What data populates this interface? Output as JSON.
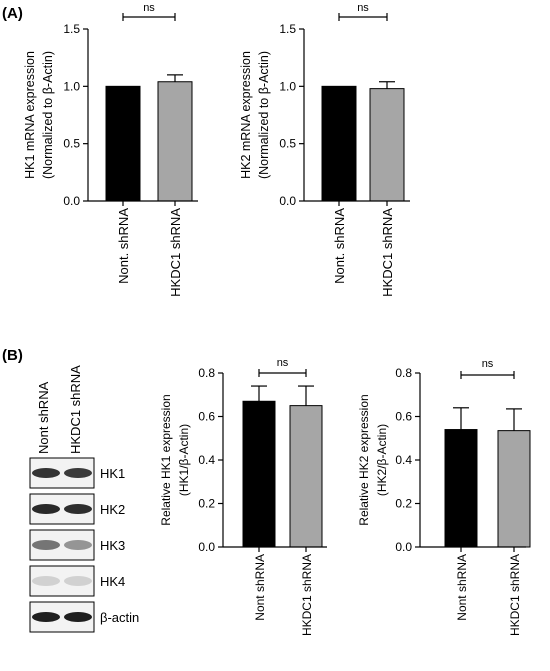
{
  "panels": {
    "a_label": "(A)",
    "b_label": "(B)"
  },
  "colors": {
    "control": "#000000",
    "knockdown": "#a6a6a6"
  },
  "chart_data": [
    {
      "type": "bar",
      "panel": "A",
      "categories": [
        "Nont. shRNA",
        "HKDC1 shRNA"
      ],
      "values": [
        1.0,
        1.04
      ],
      "errors": [
        0.0,
        0.06
      ],
      "ylabel_line1": "HK1 mRNA expression",
      "ylabel_line2": "(Normalized to β-Actin)",
      "ylim": [
        0,
        1.5
      ],
      "yticks": [
        "0.0",
        "0.5",
        "1.0",
        "1.5"
      ],
      "significance": "ns"
    },
    {
      "type": "bar",
      "panel": "A",
      "categories": [
        "Nont. shRNA",
        "HKDC1 shRNA"
      ],
      "values": [
        1.0,
        0.98
      ],
      "errors": [
        0.0,
        0.06
      ],
      "ylabel_line1": "HK2 mRNA expression",
      "ylabel_line2": "(Normalized to β-Actin)",
      "ylim": [
        0,
        1.5
      ],
      "yticks": [
        "0.0",
        "0.5",
        "1.0",
        "1.5"
      ],
      "significance": "ns"
    },
    {
      "type": "bar",
      "panel": "B",
      "categories": [
        "Nont shRNA",
        "HKDC1 shRNA"
      ],
      "values": [
        0.67,
        0.65
      ],
      "errors": [
        0.07,
        0.09
      ],
      "ylabel_line1": "Relative HK1 expression",
      "ylabel_line2": "(HK1/β-Actin)",
      "ylim": [
        0,
        0.8
      ],
      "yticks": [
        "0.0",
        "0.2",
        "0.4",
        "0.6",
        "0.8"
      ],
      "significance": "ns"
    },
    {
      "type": "bar",
      "panel": "B",
      "categories": [
        "Nont shRNA",
        "HKDC1 shRNA"
      ],
      "values": [
        0.54,
        0.535
      ],
      "errors": [
        0.1,
        0.1
      ],
      "ylabel_line1": "Relative HK2 expression",
      "ylabel_line2": "(HK2/β-Actin)",
      "ylim": [
        0,
        0.8
      ],
      "yticks": [
        "0.0",
        "0.2",
        "0.4",
        "0.6",
        "0.8"
      ],
      "significance": "ns"
    }
  ],
  "western_blot": {
    "lanes": [
      "Nont shRNA",
      "HKDC1 shRNA"
    ],
    "rows": [
      "HK1",
      "HK2",
      "HK3",
      "HK4",
      "β-actin"
    ],
    "band_intensity": [
      [
        0.85,
        0.82
      ],
      [
        0.9,
        0.88
      ],
      [
        0.55,
        0.4
      ],
      [
        0.12,
        0.12
      ],
      [
        0.95,
        0.95
      ]
    ]
  }
}
